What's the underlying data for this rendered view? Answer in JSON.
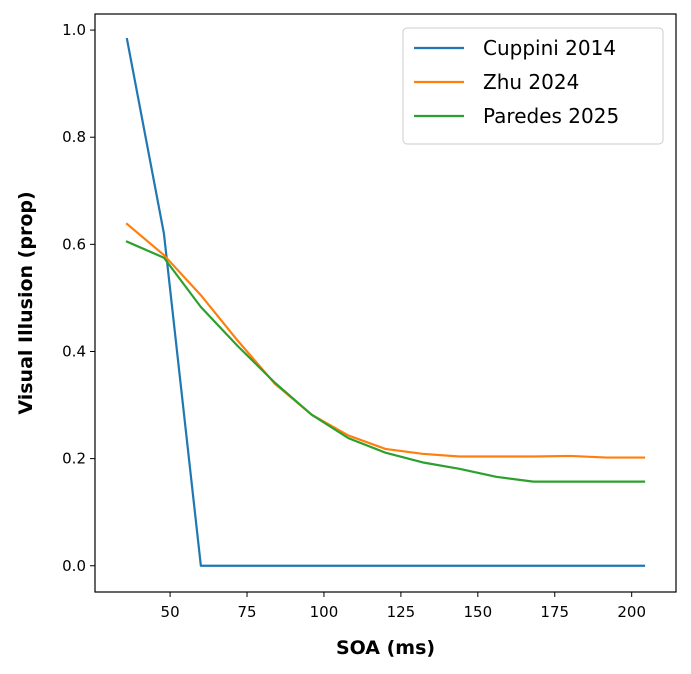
{
  "chart_data": {
    "type": "line",
    "xlabel": "SOA (ms)",
    "ylabel": "Visual Illusion (prop)",
    "xlim": [
      25.6,
      214.4
    ],
    "ylim": [
      -0.049,
      1.03
    ],
    "xticks": [
      50,
      75,
      100,
      125,
      150,
      175,
      200
    ],
    "yticks": [
      0.0,
      0.2,
      0.4,
      0.6,
      0.8,
      1.0
    ],
    "grid": false,
    "legend_position": "top-right",
    "series": [
      {
        "name": "Cuppini 2014",
        "color": "#1f77b4",
        "x": [
          36,
          48,
          60,
          72,
          84,
          96,
          108,
          120,
          132,
          144,
          156,
          168,
          180,
          192,
          204
        ],
        "y": [
          0.983,
          0.62,
          0.0,
          0.0,
          0.0,
          0.0,
          0.0,
          0.0,
          0.0,
          0.0,
          0.0,
          0.0,
          0.0,
          0.0,
          0.0
        ]
      },
      {
        "name": "Zhu 2024",
        "color": "#ff7f0e",
        "x": [
          36,
          48,
          60,
          72,
          84,
          96,
          108,
          120,
          132,
          144,
          156,
          168,
          180,
          192,
          204
        ],
        "y": [
          0.638,
          0.58,
          0.505,
          0.42,
          0.34,
          0.282,
          0.243,
          0.218,
          0.209,
          0.204,
          0.204,
          0.204,
          0.205,
          0.202,
          0.202
        ]
      },
      {
        "name": "Paredes 2025",
        "color": "#2ca02c",
        "x": [
          36,
          48,
          60,
          72,
          84,
          96,
          108,
          120,
          132,
          144,
          156,
          168,
          180,
          192,
          204
        ],
        "y": [
          0.605,
          0.575,
          0.483,
          0.41,
          0.342,
          0.282,
          0.238,
          0.211,
          0.193,
          0.181,
          0.166,
          0.157,
          0.157,
          0.157,
          0.157
        ]
      }
    ]
  }
}
